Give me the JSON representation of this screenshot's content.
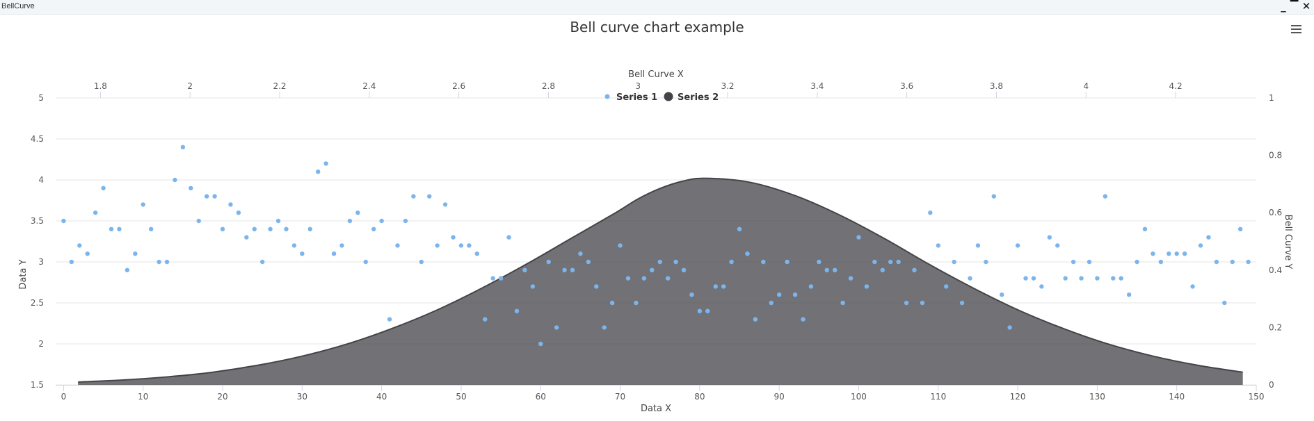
{
  "window": {
    "title": "BellCurve",
    "minimize_label": "_",
    "restore_label": "▔",
    "close_label": "✕"
  },
  "icons": {
    "menu": "hamburger-menu-icon"
  },
  "colors": {
    "series1": "#7cb5ec",
    "series2": "#434348"
  },
  "chart_data": {
    "type": "scatter",
    "title": "Bell curve chart example",
    "xlabel": "Data X",
    "ylabel": "Data Y",
    "x2label": "Bell Curve X",
    "y2label": "Bell Curve Y",
    "xlim": [
      -1,
      150
    ],
    "ylim": [
      1.5,
      5
    ],
    "x2lim": [
      1.7,
      4.38
    ],
    "y2lim": [
      0,
      1
    ],
    "x_ticks": [
      "0",
      "10",
      "20",
      "30",
      "40",
      "50",
      "60",
      "70",
      "80",
      "90",
      "100",
      "110",
      "120",
      "130",
      "140",
      "150"
    ],
    "y_ticks": [
      "1.5",
      "2",
      "2.5",
      "3",
      "3.5",
      "4",
      "4.5",
      "5"
    ],
    "x2_ticks": [
      "1.8",
      "2",
      "2.2",
      "2.4",
      "2.6",
      "2.8",
      "3",
      "3.2",
      "3.4",
      "3.6",
      "3.8",
      "4",
      "4.2"
    ],
    "y2_ticks": [
      "0",
      "0.2",
      "0.4",
      "0.6",
      "0.8",
      "1"
    ],
    "grid": true,
    "legend_position": "top-center",
    "series": [
      {
        "name": "Series 1",
        "type": "scatter",
        "axis": "primary",
        "x": [
          0,
          1,
          2,
          3,
          4,
          5,
          6,
          7,
          8,
          9,
          10,
          11,
          12,
          13,
          14,
          15,
          16,
          17,
          18,
          19,
          20,
          21,
          22,
          23,
          24,
          25,
          26,
          27,
          28,
          29,
          30,
          31,
          32,
          33,
          34,
          35,
          36,
          37,
          38,
          39,
          40,
          41,
          42,
          43,
          44,
          45,
          46,
          47,
          48,
          49,
          50,
          51,
          52,
          53,
          54,
          55,
          56,
          57,
          58,
          59,
          60,
          61,
          62,
          63,
          64,
          65,
          66,
          67,
          68,
          69,
          70,
          71,
          72,
          73,
          74,
          75,
          76,
          77,
          78,
          79,
          80,
          81,
          82,
          83,
          84,
          85,
          86,
          87,
          88,
          89,
          90,
          91,
          92,
          93,
          94,
          95,
          96,
          97,
          98,
          99,
          100,
          101,
          102,
          103,
          104,
          105,
          106,
          107,
          108,
          109,
          110,
          111,
          112,
          113,
          114,
          115,
          116,
          117,
          118,
          119,
          120,
          121,
          122,
          123,
          124,
          125,
          126,
          127,
          128,
          129,
          130,
          131,
          132,
          133,
          134,
          135,
          136,
          137,
          138,
          139,
          140,
          141,
          142,
          143,
          144,
          145,
          146,
          147,
          148,
          149
        ],
        "y": [
          3.5,
          3.0,
          3.2,
          3.1,
          3.6,
          3.9,
          3.4,
          3.4,
          2.9,
          3.1,
          3.7,
          3.4,
          3.0,
          3.0,
          4.0,
          4.4,
          3.9,
          3.5,
          3.8,
          3.8,
          3.4,
          3.7,
          3.6,
          3.3,
          3.4,
          3.0,
          3.4,
          3.5,
          3.4,
          3.2,
          3.1,
          3.4,
          4.1,
          4.2,
          3.1,
          3.2,
          3.5,
          3.6,
          3.0,
          3.4,
          3.5,
          2.3,
          3.2,
          3.5,
          3.8,
          3.0,
          3.8,
          3.2,
          3.7,
          3.3,
          3.2,
          3.2,
          3.1,
          2.3,
          2.8,
          2.8,
          3.3,
          2.4,
          2.9,
          2.7,
          2.0,
          3.0,
          2.2,
          2.9,
          2.9,
          3.1,
          3.0,
          2.7,
          2.2,
          2.5,
          3.2,
          2.8,
          2.5,
          2.8,
          2.9,
          3.0,
          2.8,
          3.0,
          2.9,
          2.6,
          2.4,
          2.4,
          2.7,
          2.7,
          3.0,
          3.4,
          3.1,
          2.3,
          3.0,
          2.5,
          2.6,
          3.0,
          2.6,
          2.3,
          2.7,
          3.0,
          2.9,
          2.9,
          2.5,
          2.8,
          3.3,
          2.7,
          3.0,
          2.9,
          3.0,
          3.0,
          2.5,
          2.9,
          2.5,
          3.6,
          3.2,
          2.7,
          3.0,
          2.5,
          2.8,
          3.2,
          3.0,
          3.8,
          2.6,
          2.2,
          3.2,
          2.8,
          2.8,
          2.7,
          3.3,
          3.2,
          2.8,
          3.0,
          2.8,
          3.0,
          2.8,
          3.8,
          2.8,
          2.8,
          2.6,
          3.0,
          3.4,
          3.1,
          3.0,
          3.1,
          3.1,
          3.1,
          2.7,
          3.2,
          3.3,
          3.0,
          2.5,
          3.0,
          3.4,
          3.0
        ]
      },
      {
        "name": "Series 2",
        "type": "area",
        "axis": "secondary",
        "x": [
          1.75,
          1.85,
          1.95,
          2.05,
          2.15,
          2.25,
          2.35,
          2.45,
          2.55,
          2.65,
          2.75,
          2.85,
          2.95,
          3.0,
          3.05,
          3.1,
          3.15,
          3.25,
          3.35,
          3.45,
          3.55,
          3.65,
          3.75,
          3.85,
          3.95,
          4.05,
          4.15,
          4.25,
          4.35
        ],
        "y": [
          0.01,
          0.017,
          0.028,
          0.044,
          0.068,
          0.1,
          0.142,
          0.196,
          0.26,
          0.336,
          0.42,
          0.51,
          0.6,
          0.648,
          0.685,
          0.71,
          0.72,
          0.706,
          0.66,
          0.592,
          0.51,
          0.42,
          0.336,
          0.26,
          0.196,
          0.142,
          0.1,
          0.068,
          0.044
        ]
      }
    ]
  }
}
